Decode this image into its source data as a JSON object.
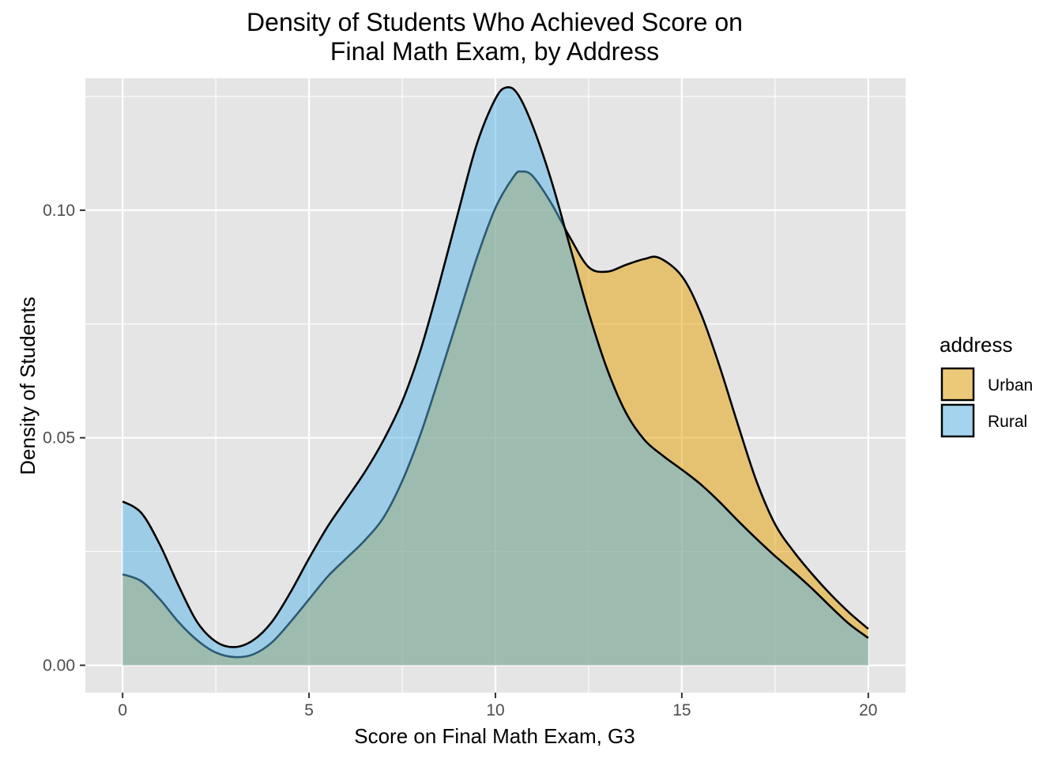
{
  "chart_data": {
    "type": "area",
    "title_lines": [
      "Density of Students Who Achieved Score on",
      "Final Math Exam, by Address"
    ],
    "xlabel": "Score on Final Math Exam, G3",
    "ylabel": "Density of Students",
    "xlim": [
      -1,
      21
    ],
    "ylim": [
      -0.006,
      0.129
    ],
    "x_ticks": [
      0,
      5,
      10,
      15,
      20
    ],
    "x_tick_labels": [
      "0",
      "5",
      "10",
      "15",
      "20"
    ],
    "y_ticks": [
      0.0,
      0.05,
      0.1
    ],
    "y_tick_labels": [
      "0.00",
      "0.05",
      "0.10"
    ],
    "grid": true,
    "legend": {
      "title": "address",
      "position": "right",
      "entries": [
        {
          "label": "Urban",
          "color": "#E69F00"
        },
        {
          "label": "Rural",
          "color": "#56B4E9"
        }
      ]
    },
    "series": [
      {
        "name": "Urban",
        "color": "#E69F00",
        "points": [
          [
            0,
            0.02
          ],
          [
            0.5,
            0.0185
          ],
          [
            1,
            0.0145
          ],
          [
            1.5,
            0.0095
          ],
          [
            2,
            0.0055
          ],
          [
            2.5,
            0.0028
          ],
          [
            3,
            0.0018
          ],
          [
            3.5,
            0.0024
          ],
          [
            4,
            0.005
          ],
          [
            4.5,
            0.0095
          ],
          [
            5,
            0.0145
          ],
          [
            5.5,
            0.0195
          ],
          [
            6,
            0.0235
          ],
          [
            6.5,
            0.0275
          ],
          [
            7,
            0.0325
          ],
          [
            7.5,
            0.0405
          ],
          [
            8,
            0.051
          ],
          [
            8.5,
            0.0635
          ],
          [
            9,
            0.0765
          ],
          [
            9.5,
            0.0895
          ],
          [
            10,
            0.1005
          ],
          [
            10.5,
            0.1075
          ],
          [
            10.7,
            0.1085
          ],
          [
            11,
            0.1075
          ],
          [
            11.5,
            0.1015
          ],
          [
            12,
            0.094
          ],
          [
            12.5,
            0.0875
          ],
          [
            13,
            0.0865
          ],
          [
            13.5,
            0.088
          ],
          [
            14,
            0.0893
          ],
          [
            14.4,
            0.0895
          ],
          [
            15,
            0.0855
          ],
          [
            15.5,
            0.0775
          ],
          [
            16,
            0.066
          ],
          [
            16.5,
            0.053
          ],
          [
            17,
            0.0405
          ],
          [
            17.5,
            0.031
          ],
          [
            18,
            0.025
          ],
          [
            18.5,
            0.02
          ],
          [
            19,
            0.0155
          ],
          [
            19.5,
            0.0115
          ],
          [
            20,
            0.008
          ]
        ]
      },
      {
        "name": "Rural",
        "color": "#56B4E9",
        "points": [
          [
            0,
            0.036
          ],
          [
            0.5,
            0.0335
          ],
          [
            1,
            0.0265
          ],
          [
            1.5,
            0.0175
          ],
          [
            2,
            0.0095
          ],
          [
            2.5,
            0.0052
          ],
          [
            3,
            0.004
          ],
          [
            3.5,
            0.0055
          ],
          [
            4,
            0.0095
          ],
          [
            4.5,
            0.016
          ],
          [
            5,
            0.0235
          ],
          [
            5.5,
            0.0305
          ],
          [
            6,
            0.0365
          ],
          [
            6.5,
            0.0425
          ],
          [
            7,
            0.0495
          ],
          [
            7.5,
            0.058
          ],
          [
            8,
            0.0695
          ],
          [
            8.5,
            0.084
          ],
          [
            9,
            0.0995
          ],
          [
            9.5,
            0.1145
          ],
          [
            10,
            0.1245
          ],
          [
            10.3,
            0.127
          ],
          [
            10.6,
            0.1255
          ],
          [
            11,
            0.1185
          ],
          [
            11.5,
            0.1065
          ],
          [
            12,
            0.092
          ],
          [
            12.5,
            0.0775
          ],
          [
            13,
            0.065
          ],
          [
            13.5,
            0.0555
          ],
          [
            14,
            0.0495
          ],
          [
            14.5,
            0.046
          ],
          [
            15,
            0.043
          ],
          [
            15.5,
            0.0398
          ],
          [
            16,
            0.036
          ],
          [
            16.5,
            0.0318
          ],
          [
            17,
            0.0278
          ],
          [
            17.5,
            0.024
          ],
          [
            18,
            0.0205
          ],
          [
            18.5,
            0.0168
          ],
          [
            19,
            0.0128
          ],
          [
            19.5,
            0.009
          ],
          [
            20,
            0.006
          ]
        ]
      }
    ]
  }
}
